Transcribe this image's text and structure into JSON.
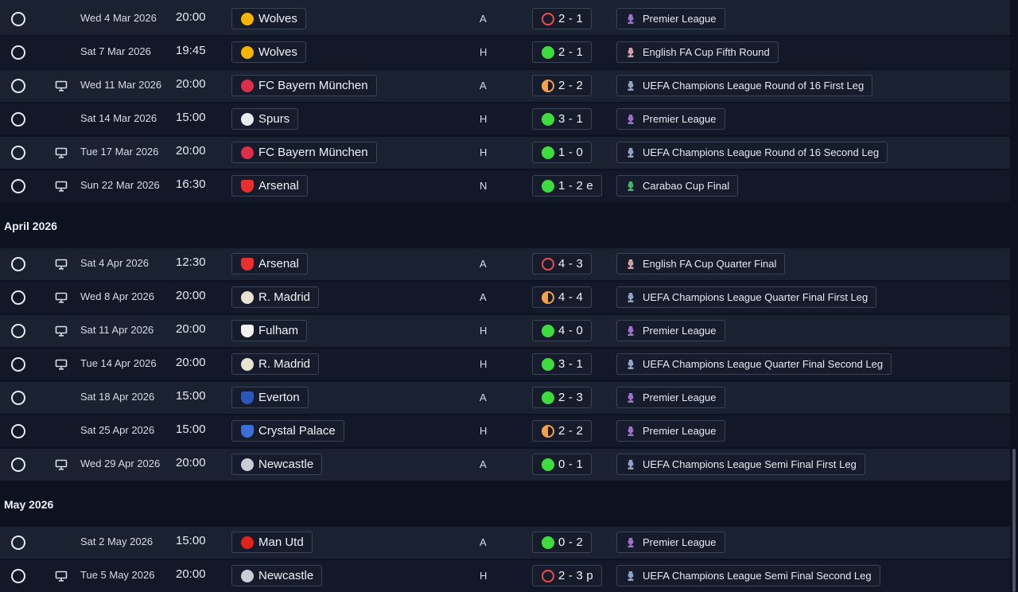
{
  "fixtures": [
    {
      "type": "match",
      "date": "Wed 4 Mar 2026",
      "time": "20:00",
      "tv": false,
      "opponent": "Wolves",
      "crest_color": "#f4b400",
      "venue": "A",
      "result": "loss",
      "score": "2 - 1",
      "competition": "Premier League",
      "comp_color": "#a070c8"
    },
    {
      "type": "match",
      "date": "Sat 7 Mar 2026",
      "time": "19:45",
      "tv": false,
      "opponent": "Wolves",
      "crest_color": "#f4b400",
      "venue": "H",
      "result": "win",
      "score": "2 - 1",
      "competition": "English FA Cup Fifth Round",
      "comp_color": "#d7a0a8"
    },
    {
      "type": "match",
      "date": "Wed 11 Mar 2026",
      "time": "20:00",
      "tv": true,
      "opponent": "FC Bayern München",
      "crest_color": "#dc2f4c",
      "venue": "A",
      "result": "draw",
      "score": "2 - 2",
      "competition": "UEFA Champions League Round of 16  First Leg",
      "comp_color": "#8fa3c8"
    },
    {
      "type": "match",
      "date": "Sat 14 Mar 2026",
      "time": "15:00",
      "tv": false,
      "opponent": "Spurs",
      "crest_color": "#e8ecf2",
      "venue": "H",
      "result": "win",
      "score": "3 - 1",
      "competition": "Premier League",
      "comp_color": "#a070c8"
    },
    {
      "type": "match",
      "date": "Tue 17 Mar 2026",
      "time": "20:00",
      "tv": true,
      "opponent": "FC Bayern München",
      "crest_color": "#dc2f4c",
      "venue": "H",
      "result": "win",
      "score": "1 - 0",
      "competition": "UEFA Champions League Round of 16  Second Leg",
      "comp_color": "#8fa3c8"
    },
    {
      "type": "match",
      "date": "Sun 22 Mar 2026",
      "time": "16:30",
      "tv": true,
      "opponent": "Arsenal",
      "crest_color": "#e8312f",
      "venue": "N",
      "result": "win",
      "score": "1 - 2 e",
      "competition": "Carabao Cup Final",
      "comp_color": "#3fb86a"
    },
    {
      "type": "section",
      "title": "April 2026"
    },
    {
      "type": "match",
      "date": "Sat 4 Apr 2026",
      "time": "12:30",
      "tv": true,
      "opponent": "Arsenal",
      "crest_color": "#e8312f",
      "venue": "A",
      "result": "loss",
      "score": "4 - 3",
      "competition": "English FA Cup Quarter Final",
      "comp_color": "#d7a0a8"
    },
    {
      "type": "match",
      "date": "Wed 8 Apr 2026",
      "time": "20:00",
      "tv": true,
      "opponent": "R. Madrid",
      "crest_color": "#e9e4d0",
      "venue": "A",
      "result": "draw",
      "score": "4 - 4",
      "competition": "UEFA Champions League Quarter Final First Leg",
      "comp_color": "#8fa3c8"
    },
    {
      "type": "match",
      "date": "Sat 11 Apr 2026",
      "time": "20:00",
      "tv": true,
      "opponent": "Fulham",
      "crest_color": "#f2f2f2",
      "venue": "H",
      "result": "win",
      "score": "4 - 0",
      "competition": "Premier League",
      "comp_color": "#a070c8"
    },
    {
      "type": "match",
      "date": "Tue 14 Apr 2026",
      "time": "20:00",
      "tv": true,
      "opponent": "R. Madrid",
      "crest_color": "#e9e4d0",
      "venue": "H",
      "result": "win",
      "score": "3 - 1",
      "competition": "UEFA Champions League Quarter Final Second Leg",
      "comp_color": "#8fa3c8"
    },
    {
      "type": "match",
      "date": "Sat 18 Apr 2026",
      "time": "15:00",
      "tv": false,
      "opponent": "Everton",
      "crest_color": "#2a57b8",
      "venue": "A",
      "result": "win",
      "score": "2 - 3",
      "competition": "Premier League",
      "comp_color": "#a070c8"
    },
    {
      "type": "match",
      "date": "Sat 25 Apr 2026",
      "time": "15:00",
      "tv": false,
      "opponent": "Crystal Palace",
      "crest_color": "#3a6fd8",
      "venue": "H",
      "result": "draw",
      "score": "2 - 2",
      "competition": "Premier League",
      "comp_color": "#a070c8"
    },
    {
      "type": "match",
      "date": "Wed 29 Apr 2026",
      "time": "20:00",
      "tv": true,
      "opponent": "Newcastle",
      "crest_color": "#c9cdd6",
      "venue": "A",
      "result": "win",
      "score": "0 - 1",
      "competition": "UEFA Champions League Semi Final First Leg",
      "comp_color": "#8fa3c8"
    },
    {
      "type": "section",
      "title": "May 2026"
    },
    {
      "type": "match",
      "date": "Sat 2 May 2026",
      "time": "15:00",
      "tv": false,
      "opponent": "Man Utd",
      "crest_color": "#e2231a",
      "venue": "A",
      "result": "win",
      "score": "0 - 2",
      "competition": "Premier League",
      "comp_color": "#a070c8"
    },
    {
      "type": "match",
      "date": "Tue 5 May 2026",
      "time": "20:00",
      "tv": true,
      "opponent": "Newcastle",
      "crest_color": "#c9cdd6",
      "venue": "H",
      "result": "loss",
      "score": "2 - 3 p",
      "competition": "UEFA Champions League Semi Final Second Leg",
      "comp_color": "#8fa3c8"
    }
  ]
}
